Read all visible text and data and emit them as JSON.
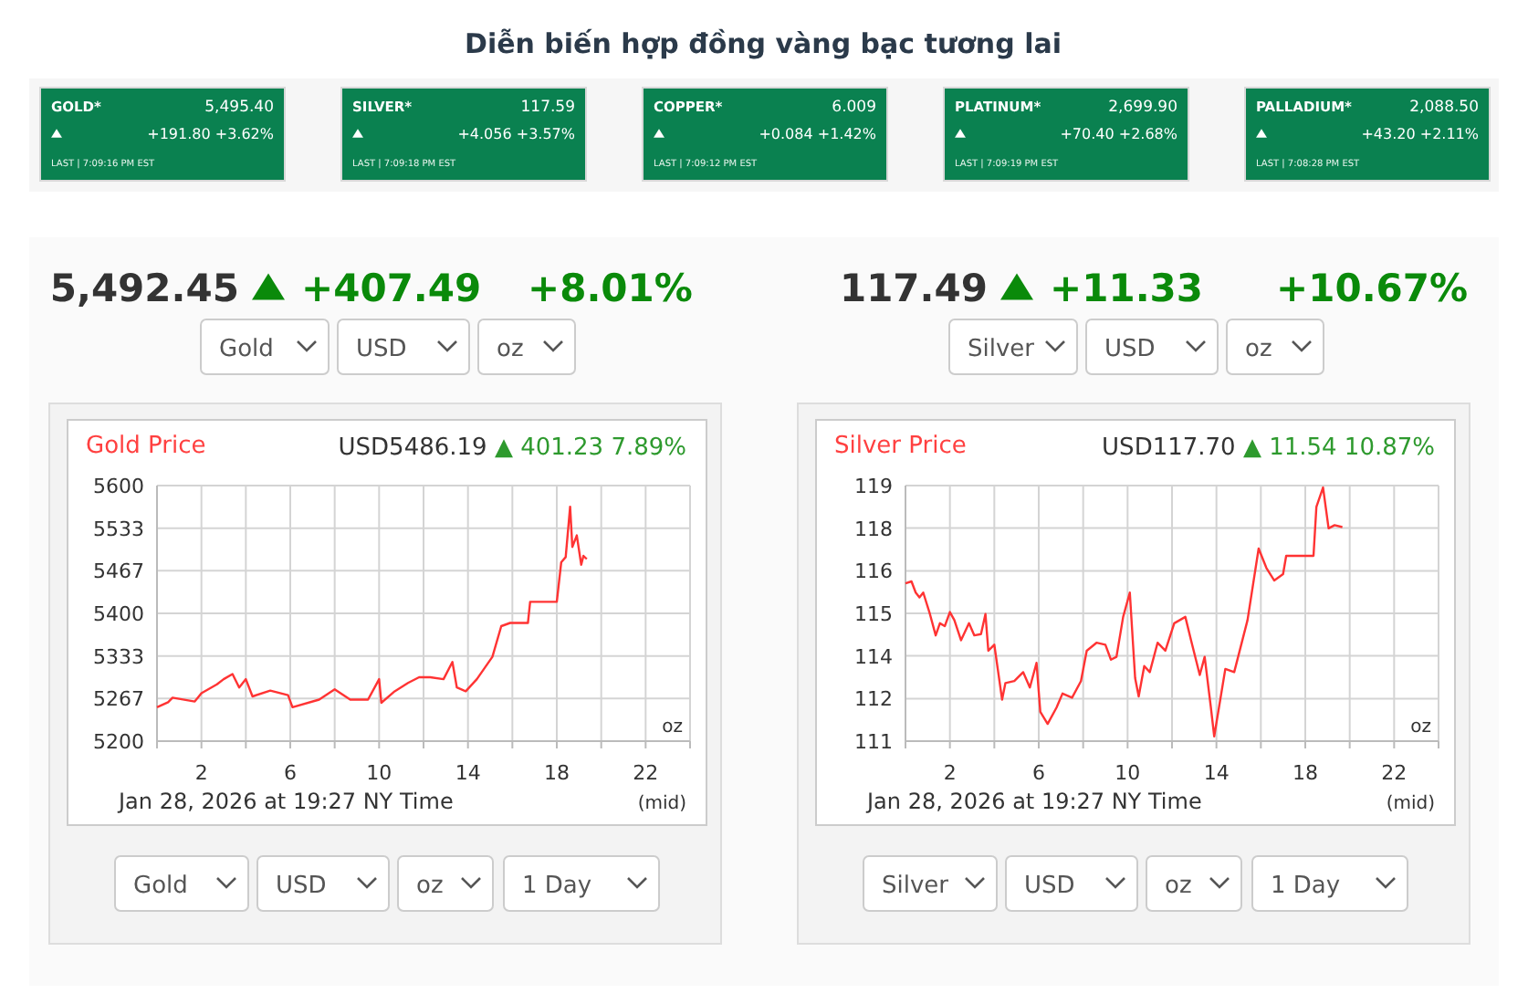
{
  "chart_data": [
    {
      "type": "other",
      "title": "Diễn biến hợp đồng vàng bạc tương lai",
      "annotations": [
        "GOLD*",
        "5,495.40",
        "+191.80",
        "+3.62%",
        "LAST | 7:09:16 PM EST",
        "SILVER*",
        "117.59",
        "+4.056",
        "+3.57%",
        "LAST | 7:09:18 PM EST",
        "COPPER*",
        "6.009",
        "+0.084",
        "+1.42%",
        "LAST | 7:09:12 PM EST",
        "PLATINUM*",
        "2,699.90",
        "+70.40",
        "+2.68%",
        "LAST | 7:09:19 PM EST",
        "PALLADIUM*",
        "2,088.50",
        "+43.20",
        "+2.11%",
        "LAST | 7:08:28 PM EST"
      ]
    },
    {
      "type": "line",
      "title": "Gold Price",
      "subtitle": "USD5486.19 ▲ 401.23 7.89%",
      "grid": true,
      "xlim": [
        0,
        24
      ],
      "xticks": [
        {
          "value": 0,
          "label": null
        },
        2,
        {
          "value": 4,
          "label": null
        },
        6,
        {
          "value": 8,
          "label": null
        },
        10,
        {
          "value": 12,
          "label": null
        },
        14,
        {
          "value": 16,
          "label": null
        },
        18,
        {
          "value": 20,
          "label": null
        },
        22,
        {
          "value": 24,
          "label": null
        }
      ],
      "ylim": [
        5200,
        5600
      ],
      "yticks": [
        5200,
        {
          "value": 5266.67,
          "label": "5267"
        },
        {
          "value": 5333.33,
          "label": "5333"
        },
        5400,
        {
          "value": 5466.67,
          "label": "5467"
        },
        {
          "value": 5533.33,
          "label": "5533"
        },
        5600
      ],
      "annotations": [
        "5,492.45",
        "+407.49",
        "+8.01%",
        "Gold",
        "USD",
        "oz",
        "oz",
        "Jan 28, 2026 at 19:27 NY Time",
        "(mid)",
        "Gold",
        "USD",
        "oz",
        "1 Day"
      ],
      "series": [
        {
          "color": "#ff3333",
          "x": [
            0,
            0.5,
            0.7,
            1.7,
            2,
            2.7,
            3,
            3.4,
            3.7,
            4,
            4.3,
            5.1,
            5.9,
            6.1,
            7.3,
            8,
            8.7,
            9.5,
            9.8,
            10,
            10.1,
            10.7,
            11.3,
            11.8,
            12.3,
            12.9,
            13.3,
            13.5,
            13.9,
            14.4,
            15.1,
            15.5,
            15.9,
            16.7,
            16.8,
            18,
            18.2,
            18.4,
            18.6,
            18.7,
            18.9,
            19.1,
            19.2,
            19.35
          ],
          "values": [
            5253,
            5261,
            5268,
            5262,
            5275,
            5289,
            5297,
            5305,
            5284,
            5297,
            5270,
            5279,
            5272,
            5253,
            5265,
            5281,
            5265,
            5265,
            5284,
            5297,
            5260,
            5278,
            5291,
            5300,
            5300,
            5297,
            5324,
            5284,
            5278,
            5297,
            5332,
            5380,
            5385,
            5385,
            5418,
            5418,
            5480,
            5488,
            5567,
            5504,
            5522,
            5476,
            5490,
            5485
          ]
        }
      ]
    },
    {
      "type": "line",
      "title": "Silver Price",
      "subtitle": "USD117.70 ▲ 11.54 10.87%",
      "grid": true,
      "xlim": [
        0,
        24
      ],
      "xticks": [
        {
          "value": 0,
          "label": null
        },
        2,
        {
          "value": 4,
          "label": null
        },
        6,
        {
          "value": 8,
          "label": null
        },
        10,
        {
          "value": 12,
          "label": null
        },
        14,
        {
          "value": 16,
          "label": null
        },
        18,
        {
          "value": 20,
          "label": null
        },
        22,
        {
          "value": 24,
          "label": null
        }
      ],
      "ylim": [
        111,
        119
      ],
      "yticks": [
        111,
        {
          "value": 112.33,
          "label": "112"
        },
        {
          "value": 113.67,
          "label": "114"
        },
        115,
        {
          "value": 116.33,
          "label": "116"
        },
        {
          "value": 117.67,
          "label": "118"
        },
        119
      ],
      "annotations": [
        "117.49",
        "+11.33",
        "+10.67%",
        "Silver",
        "USD",
        "oz",
        "oz",
        "Jan 28, 2026 at 19:27 NY Time",
        "(mid)",
        "Silver",
        "USD",
        "oz",
        "1 Day"
      ],
      "series": [
        {
          "color": "#ff3333",
          "x": [
            0,
            0.27,
            0.46,
            0.63,
            0.8,
            1.1,
            1.36,
            1.55,
            1.77,
            2,
            2.2,
            2.5,
            2.86,
            3.1,
            3.4,
            3.6,
            3.73,
            4,
            4.35,
            4.5,
            4.9,
            5.3,
            5.6,
            5.9,
            6.07,
            6.4,
            6.8,
            7.07,
            7.5,
            7.9,
            8.16,
            8.6,
            9,
            9.25,
            9.5,
            9.8,
            10.1,
            10.34,
            10.5,
            10.75,
            11,
            11.35,
            11.7,
            12.1,
            12.6,
            12.87,
            13.25,
            13.47,
            13.74,
            13.9,
            14.4,
            14.8,
            15.4,
            15.9,
            16.25,
            16.6,
            17,
            17.14,
            18.37,
            18.5,
            18.8,
            19.05,
            19.32,
            19.67
          ],
          "values": [
            115.94,
            116,
            115.65,
            115.5,
            115.65,
            114.98,
            114.31,
            114.69,
            114.6,
            115.04,
            114.79,
            114.16,
            114.69,
            114.31,
            114.35,
            114.98,
            113.83,
            114.02,
            112.3,
            112.82,
            112.88,
            113.16,
            112.68,
            113.45,
            111.92,
            111.54,
            112.05,
            112.49,
            112.36,
            112.88,
            113.83,
            114.08,
            114.02,
            113.55,
            113.64,
            114.89,
            115.65,
            112.97,
            112.4,
            113.35,
            113.16,
            114.08,
            113.83,
            114.69,
            114.89,
            114.12,
            113.07,
            113.64,
            112.11,
            111.15,
            113.26,
            113.16,
            114.79,
            117.03,
            116.42,
            116.03,
            116.23,
            116.8,
            116.8,
            118.33,
            118.94,
            117.66,
            117.76,
            117.7
          ]
        }
      ]
    }
  ]
}
